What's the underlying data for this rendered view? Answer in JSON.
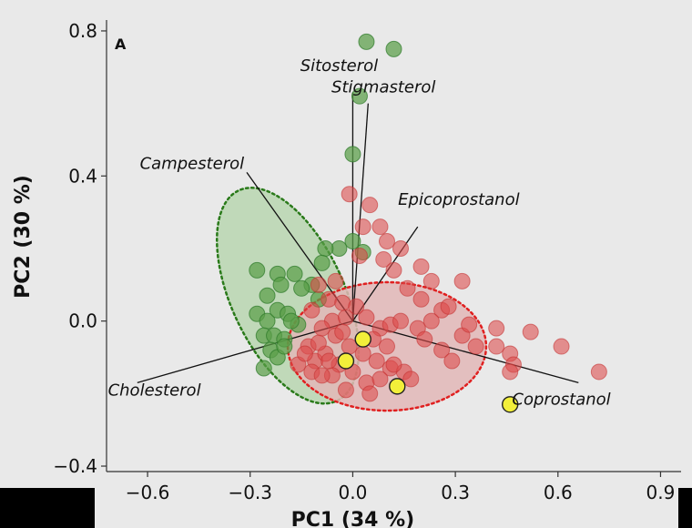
{
  "chart_data": {
    "type": "scatter",
    "panel_label": "A",
    "xlabel": "PC1 (34 %)",
    "ylabel": "PC2 (30 %)",
    "xlim": [
      -0.72,
      0.96
    ],
    "ylim": [
      -0.415,
      0.83
    ],
    "xticks": [
      -0.6,
      -0.3,
      0.0,
      0.3,
      0.6,
      0.9
    ],
    "xtick_labels": [
      "−0.6",
      "−0.3",
      "0.0",
      "0.3",
      "0.6",
      "0.9"
    ],
    "yticks": [
      -0.4,
      0.0,
      0.4,
      0.8
    ],
    "ytick_labels": [
      "−0.4",
      "0.0",
      "0.4",
      "0.8"
    ],
    "grid": false,
    "colors": {
      "green": "#5a9e48",
      "green_dark": "#2e7a2a",
      "red": "#dd4a4a",
      "yellow": "#f2ef3a",
      "green_fill": "#b9d6b0",
      "red_fill": "#e2b7b7",
      "red_ellipse_border": "#e02020",
      "green_ellipse_border": "#2a7a1a"
    },
    "ellipses": [
      {
        "group": "green",
        "center": [
          -0.19,
          0.07
        ],
        "rx": 0.165,
        "ry": 0.32,
        "rotation_deg": -25
      },
      {
        "group": "red",
        "center": [
          0.1,
          -0.07
        ],
        "rx": 0.29,
        "ry": 0.177,
        "rotation_deg": 0
      }
    ],
    "loadings": [
      {
        "name": "Sitosterol",
        "x": 0.0,
        "y": 0.63,
        "label_x": -0.04,
        "label_y": 0.69
      },
      {
        "name": "Stigmasterol",
        "x": 0.045,
        "y": 0.6,
        "label_x": 0.09,
        "label_y": 0.63
      },
      {
        "name": "Campesterol",
        "x": -0.31,
        "y": 0.41,
        "label_x": -0.47,
        "label_y": 0.42
      },
      {
        "name": "Epicoprostanol",
        "x": 0.19,
        "y": 0.26,
        "label_x": 0.31,
        "label_y": 0.32
      },
      {
        "name": "Cholesterol",
        "x": -0.63,
        "y": -0.17,
        "label_x": -0.58,
        "label_y": -0.205
      },
      {
        "name": "Coprostanol",
        "x": 0.66,
        "y": -0.17,
        "label_x": 0.61,
        "label_y": -0.23
      }
    ],
    "series": [
      {
        "values": [
          [
            0.04,
            0.77
          ],
          [
            0.12,
            0.75
          ],
          [
            0.02,
            0.62
          ],
          [
            0.0,
            0.46
          ],
          [
            0.0,
            0.22
          ],
          [
            -0.04,
            0.2
          ],
          [
            0.03,
            0.19
          ],
          [
            -0.08,
            0.2
          ],
          [
            -0.28,
            0.14
          ],
          [
            -0.22,
            0.13
          ],
          [
            -0.17,
            0.13
          ],
          [
            -0.12,
            0.1
          ],
          [
            -0.09,
            0.16
          ],
          [
            -0.25,
            0.07
          ],
          [
            -0.21,
            0.1
          ],
          [
            -0.15,
            0.09
          ],
          [
            -0.1,
            0.06
          ],
          [
            -0.28,
            0.02
          ],
          [
            -0.25,
            0.0
          ],
          [
            -0.22,
            0.03
          ],
          [
            -0.19,
            0.02
          ],
          [
            -0.16,
            -0.01
          ],
          [
            -0.26,
            -0.04
          ],
          [
            -0.23,
            -0.04
          ],
          [
            -0.2,
            -0.05
          ],
          [
            -0.24,
            -0.08
          ],
          [
            -0.22,
            -0.1
          ],
          [
            -0.26,
            -0.13
          ],
          [
            -0.18,
            0.0
          ],
          [
            -0.2,
            -0.07
          ]
        ]
      },
      {
        "values": [
          [
            -0.01,
            0.35
          ],
          [
            0.05,
            0.32
          ],
          [
            0.03,
            0.26
          ],
          [
            0.08,
            0.26
          ],
          [
            0.1,
            0.22
          ],
          [
            0.14,
            0.2
          ],
          [
            0.02,
            0.18
          ],
          [
            0.09,
            0.17
          ],
          [
            0.12,
            0.14
          ],
          [
            0.2,
            0.15
          ],
          [
            0.16,
            0.09
          ],
          [
            0.23,
            0.11
          ],
          [
            0.26,
            0.03
          ],
          [
            0.32,
            0.11
          ],
          [
            -0.05,
            0.11
          ],
          [
            -0.1,
            0.1
          ],
          [
            -0.07,
            0.06
          ],
          [
            -0.03,
            0.05
          ],
          [
            -0.12,
            0.03
          ],
          [
            -0.06,
            0.0
          ],
          [
            -0.02,
            0.01
          ],
          [
            0.04,
            0.01
          ],
          [
            0.08,
            -0.02
          ],
          [
            0.11,
            -0.01
          ],
          [
            0.14,
            0.0
          ],
          [
            0.19,
            -0.02
          ],
          [
            0.21,
            -0.05
          ],
          [
            0.26,
            -0.08
          ],
          [
            0.29,
            -0.11
          ],
          [
            0.32,
            -0.04
          ],
          [
            0.36,
            -0.07
          ],
          [
            0.42,
            -0.07
          ],
          [
            0.46,
            -0.09
          ],
          [
            0.47,
            -0.12
          ],
          [
            0.52,
            -0.03
          ],
          [
            0.61,
            -0.07
          ],
          [
            0.72,
            -0.14
          ],
          [
            0.46,
            -0.14
          ],
          [
            0.42,
            -0.02
          ],
          [
            0.34,
            -0.01
          ],
          [
            -0.09,
            -0.02
          ],
          [
            -0.05,
            -0.04
          ],
          [
            -0.01,
            -0.07
          ],
          [
            0.03,
            -0.09
          ],
          [
            0.07,
            -0.11
          ],
          [
            0.11,
            -0.13
          ],
          [
            0.15,
            -0.14
          ],
          [
            -0.13,
            -0.07
          ],
          [
            -0.11,
            -0.11
          ],
          [
            -0.08,
            -0.09
          ],
          [
            -0.04,
            -0.12
          ],
          [
            0.0,
            -0.14
          ],
          [
            0.04,
            -0.17
          ],
          [
            0.08,
            -0.16
          ],
          [
            0.12,
            -0.12
          ],
          [
            -0.06,
            -0.15
          ],
          [
            -0.02,
            -0.19
          ],
          [
            0.05,
            -0.2
          ],
          [
            -0.16,
            -0.12
          ],
          [
            -0.12,
            -0.14
          ],
          [
            -0.09,
            -0.15
          ],
          [
            -0.14,
            -0.09
          ],
          [
            -0.1,
            -0.06
          ],
          [
            -0.07,
            -0.11
          ],
          [
            0.17,
            -0.16
          ],
          [
            0.01,
            0.04
          ],
          [
            0.06,
            -0.05
          ],
          [
            0.1,
            -0.07
          ],
          [
            0.23,
            0.0
          ],
          [
            0.28,
            0.04
          ],
          [
            -0.03,
            -0.03
          ],
          [
            0.2,
            0.06
          ]
        ]
      },
      {
        "values": [
          [
            0.03,
            -0.05
          ],
          [
            -0.02,
            -0.11
          ],
          [
            0.13,
            -0.18
          ],
          [
            0.46,
            -0.23
          ]
        ]
      }
    ]
  }
}
